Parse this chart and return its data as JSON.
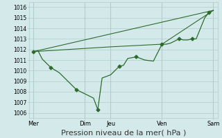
{
  "background_color": "#d4eaea",
  "grid_color": "#b0cccc",
  "line_color": "#2d6b2d",
  "xlabel": "Pression niveau de la mer( hPa )",
  "xlabel_fontsize": 8,
  "ylim": [
    1005.5,
    1016.5
  ],
  "yticks": [
    1006,
    1007,
    1008,
    1009,
    1010,
    1011,
    1012,
    1013,
    1014,
    1015,
    1016
  ],
  "xtick_labels": [
    "Mer",
    "Dim",
    "Jeu",
    "Ven",
    "Sam"
  ],
  "xtick_positions": [
    0,
    6,
    9,
    15,
    21
  ],
  "vlines": [
    0,
    6,
    9,
    15,
    21
  ],
  "series1_x": [
    0,
    0.5,
    1,
    2,
    3,
    4,
    5,
    6,
    7,
    7.5,
    8,
    9,
    10,
    10.5,
    11,
    12,
    13,
    14,
    15,
    15.5,
    16,
    17,
    17.5,
    18,
    18.5,
    19,
    20,
    20.5,
    21
  ],
  "series1_y": [
    1011.8,
    1011.9,
    1011.1,
    1010.3,
    1009.8,
    1009.0,
    1008.2,
    1007.8,
    1007.4,
    1006.3,
    1009.3,
    1009.6,
    1010.4,
    1010.5,
    1011.15,
    1011.3,
    1011.0,
    1010.9,
    1012.5,
    1012.5,
    1012.6,
    1013.0,
    1012.9,
    1012.9,
    1013.0,
    1013.0,
    1015.0,
    1015.5,
    1015.7
  ],
  "series2_x": [
    0,
    21
  ],
  "series2_y": [
    1011.8,
    1015.7
  ],
  "series3_x": [
    0,
    9,
    15,
    21
  ],
  "series3_y": [
    1011.8,
    1012.25,
    1012.5,
    1015.7
  ],
  "marker": "D",
  "marker_size": 2.5,
  "figsize": [
    3.2,
    2.0
  ],
  "dpi": 100
}
